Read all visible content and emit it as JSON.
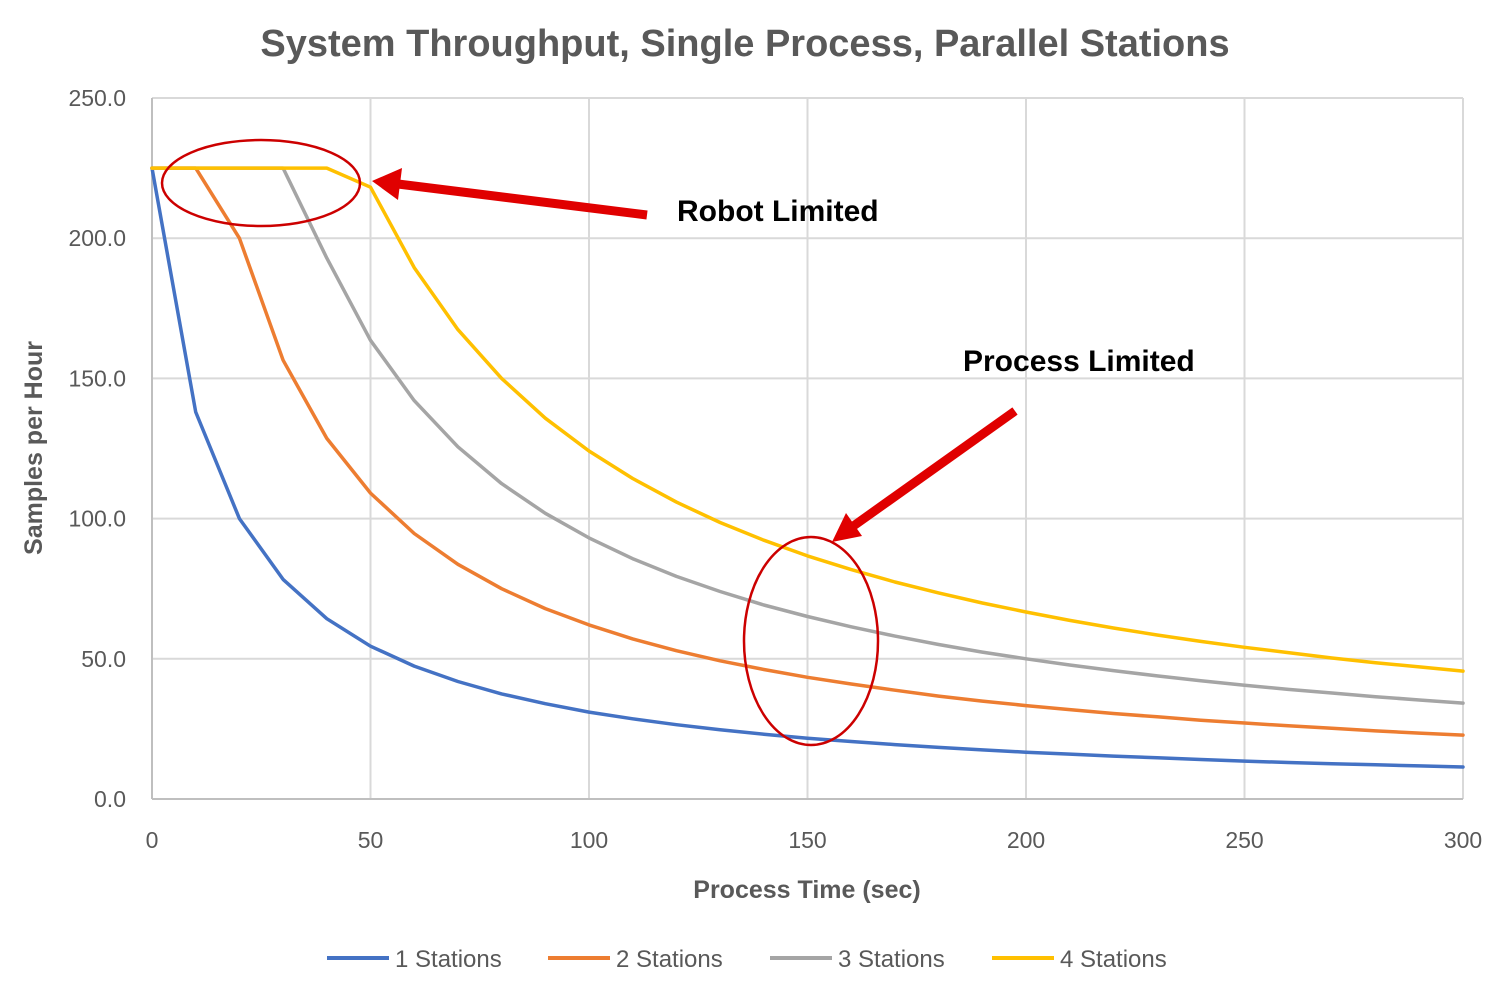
{
  "chart_data": {
    "type": "line",
    "title": "System Throughput, Single Process, Parallel  Stations",
    "xlabel": "Process Time (sec)",
    "ylabel": "Samples per Hour",
    "xlim": [
      0,
      300
    ],
    "ylim": [
      0,
      250
    ],
    "x_ticks": [
      "0",
      "50",
      "100",
      "150",
      "200",
      "250",
      "300"
    ],
    "y_ticks": [
      "0.0",
      "50.0",
      "100.0",
      "150.0",
      "200.0",
      "250.0"
    ],
    "grid": true,
    "legend_position": "bottom",
    "x": [
      0,
      10,
      20,
      30,
      40,
      50,
      60,
      70,
      80,
      90,
      100,
      110,
      120,
      130,
      140,
      150,
      160,
      170,
      180,
      190,
      200,
      210,
      220,
      230,
      240,
      250,
      260,
      270,
      280,
      290,
      300
    ],
    "series": [
      {
        "name": "1 Stations",
        "color": "#4472c4",
        "values": [
          225,
          138,
          100,
          78.3,
          64.3,
          54.5,
          47.4,
          41.9,
          37.5,
          34.0,
          31.0,
          28.6,
          26.5,
          24.7,
          23.1,
          21.7,
          20.5,
          19.4,
          18.4,
          17.5,
          16.7,
          16.0,
          15.3,
          14.7,
          14.1,
          13.5,
          13.0,
          12.6,
          12.2,
          11.8,
          11.4
        ]
      },
      {
        "name": "2 Stations",
        "color": "#ed7d31",
        "values": [
          225,
          225,
          200,
          156.5,
          128.6,
          109.1,
          94.7,
          83.7,
          75.0,
          67.9,
          62.1,
          57.1,
          52.9,
          49.3,
          46.2,
          43.4,
          41.0,
          38.8,
          36.7,
          34.9,
          33.3,
          31.9,
          30.5,
          29.3,
          28.1,
          27.1,
          26.1,
          25.2,
          24.3,
          23.5,
          22.8
        ]
      },
      {
        "name": "3 Stations",
        "color": "#a5a5a5",
        "values": [
          225,
          225,
          225,
          225,
          192.9,
          163.6,
          142.1,
          125.6,
          112.5,
          101.9,
          93.1,
          85.7,
          79.4,
          74.0,
          69.2,
          65.1,
          61.4,
          58.1,
          55.1,
          52.4,
          50.0,
          47.8,
          45.8,
          43.9,
          42.2,
          40.6,
          39.1,
          37.8,
          36.5,
          35.3,
          34.2
        ]
      },
      {
        "name": "4 Stations",
        "color": "#ffc000",
        "values": [
          225,
          225,
          225,
          225,
          225,
          218.2,
          189.5,
          167.4,
          150.0,
          135.8,
          124.1,
          114.3,
          105.9,
          98.6,
          92.3,
          86.7,
          81.8,
          77.4,
          73.5,
          69.9,
          66.7,
          63.7,
          61.0,
          58.5,
          56.2,
          54.1,
          52.2,
          50.3,
          48.6,
          47.1,
          45.6
        ]
      }
    ],
    "annotations": [
      {
        "id": "robot-limited",
        "text": "Robot Limited",
        "color": "#cc0000"
      },
      {
        "id": "process-limited",
        "text": "Process Limited",
        "color": "#cc0000"
      }
    ]
  }
}
